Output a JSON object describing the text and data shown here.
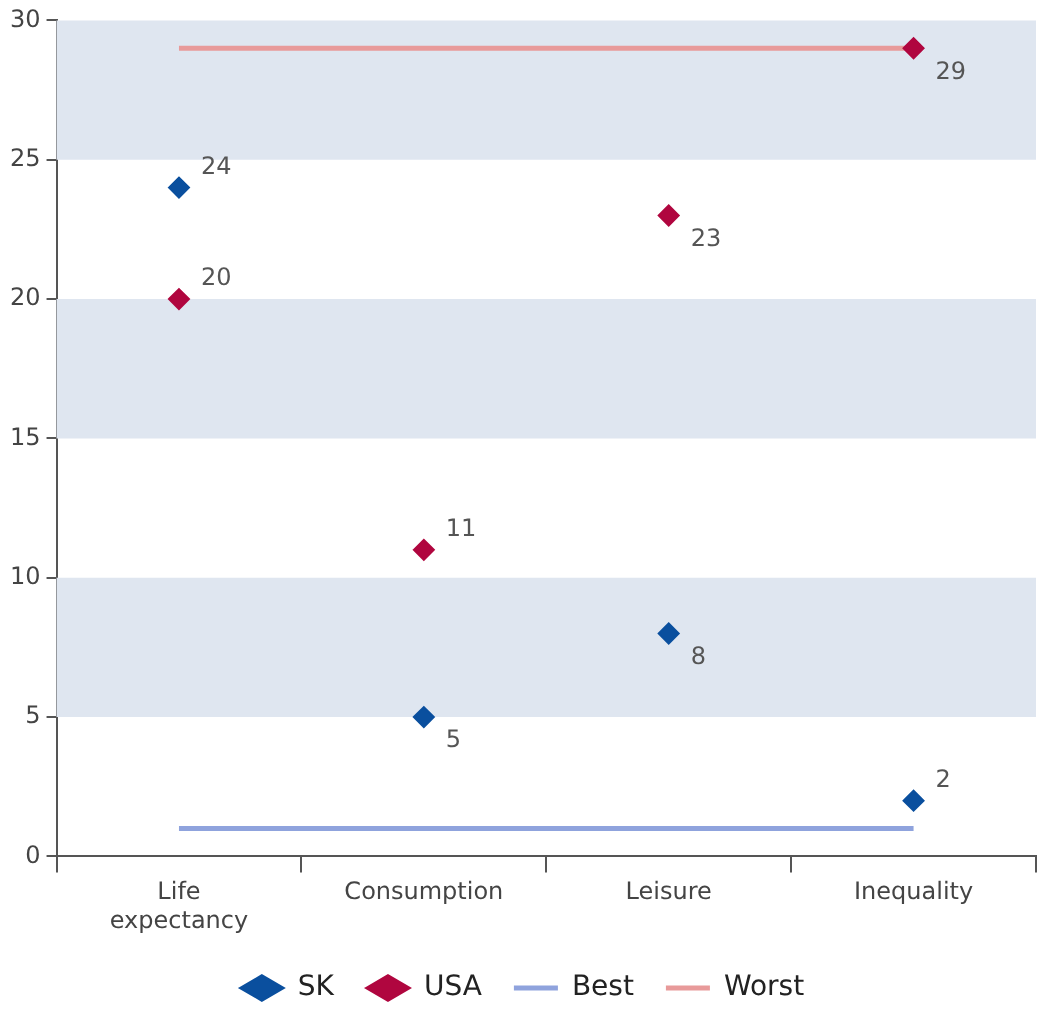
{
  "chart_data": {
    "type": "scatter",
    "categories": [
      "Life expectancy",
      "Consumption",
      "Leisure",
      "Inequality"
    ],
    "series": [
      {
        "name": "SK",
        "color": "#0a4f9e",
        "marker": "diamond",
        "values": [
          24,
          5,
          8,
          2
        ],
        "value_labels": [
          "24",
          "5",
          "8",
          "2"
        ]
      },
      {
        "name": "USA",
        "color": "#b0063f",
        "marker": "diamond",
        "values": [
          20,
          11,
          23,
          29
        ],
        "value_labels": [
          "20",
          "11",
          "23",
          "29"
        ]
      },
      {
        "name": "Best",
        "type": "line",
        "color": "#8fa3dd",
        "values": [
          1,
          1,
          1,
          1
        ]
      },
      {
        "name": "Worst",
        "type": "line",
        "color": "#e89a9a",
        "values": [
          29,
          29,
          29,
          29
        ]
      }
    ],
    "ylim": [
      0,
      30
    ],
    "yticks": [
      0,
      5,
      10,
      15,
      20,
      25,
      30
    ],
    "grid": false,
    "legend": "bottom",
    "bands": [
      {
        "axis": "y",
        "from": 5,
        "to": 10,
        "color": "#dfe6f0"
      },
      {
        "axis": "y",
        "from": 15,
        "to": 20,
        "color": "#dfe6f0"
      },
      {
        "axis": "y",
        "from": 25,
        "to": 30,
        "color": "#dfe6f0"
      }
    ]
  }
}
